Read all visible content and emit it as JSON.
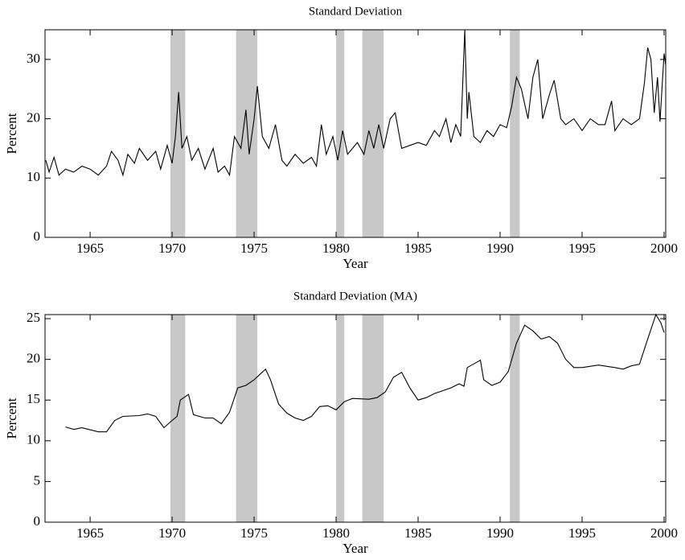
{
  "chart_data": [
    {
      "type": "line",
      "title": "Standard Deviation",
      "xlabel": "Year",
      "ylabel": "Percent",
      "xlim": [
        1962.25,
        2000.1
      ],
      "xticks": [
        1965,
        1970,
        1975,
        1980,
        1985,
        1990,
        1995,
        2000
      ],
      "ylim": [
        0,
        35
      ],
      "yticks": [
        0,
        10,
        20,
        30
      ],
      "color": "#000000",
      "shade_color": "#c8c8c8",
      "shaded_regions": [
        [
          1969.9,
          1970.8
        ],
        [
          1973.9,
          1975.2
        ],
        [
          1980.0,
          1980.5
        ],
        [
          1981.6,
          1982.9
        ],
        [
          1990.6,
          1991.2
        ]
      ],
      "x": [
        1962.3,
        1962.5,
        1962.8,
        1963.1,
        1963.5,
        1964,
        1964.5,
        1965,
        1965.5,
        1966,
        1966.3,
        1966.7,
        1967,
        1967.3,
        1967.7,
        1968,
        1968.5,
        1969,
        1969.3,
        1969.7,
        1970,
        1970.2,
        1970.4,
        1970.6,
        1970.9,
        1971.2,
        1971.6,
        1972,
        1972.5,
        1972.8,
        1973.2,
        1973.5,
        1973.8,
        1974.2,
        1974.5,
        1974.7,
        1975,
        1975.2,
        1975.5,
        1975.9,
        1976.3,
        1976.7,
        1977,
        1977.5,
        1978,
        1978.5,
        1978.8,
        1979.1,
        1979.4,
        1979.8,
        1980.1,
        1980.4,
        1980.7,
        1981,
        1981.3,
        1981.7,
        1982,
        1982.3,
        1982.6,
        1982.9,
        1983.3,
        1983.6,
        1984,
        1984.5,
        1985,
        1985.5,
        1986,
        1986.3,
        1986.7,
        1987,
        1987.3,
        1987.6,
        1987.85,
        1988,
        1988.1,
        1988.4,
        1988.8,
        1989.2,
        1989.6,
        1990,
        1990.4,
        1990.7,
        1991,
        1991.3,
        1991.7,
        1992,
        1992.3,
        1992.6,
        1993,
        1993.3,
        1993.7,
        1994,
        1994.5,
        1995,
        1995.5,
        1996,
        1996.4,
        1996.8,
        1997,
        1997.5,
        1998,
        1998.5,
        1998.8,
        1999,
        1999.2,
        1999.4,
        1999.6,
        1999.75,
        2000,
        2000.1
      ],
      "values": [
        13,
        11,
        13.5,
        10.5,
        11.5,
        11,
        12,
        11.5,
        10.5,
        12,
        14.5,
        13,
        10.5,
        14,
        12.5,
        15,
        13,
        14.5,
        11.5,
        15.5,
        12.5,
        17,
        24.5,
        15,
        17,
        13,
        15,
        11.5,
        15,
        11,
        12,
        10.5,
        17,
        15,
        21.5,
        14,
        20,
        25.5,
        17,
        15,
        19,
        13,
        12,
        14,
        12.5,
        13.5,
        12,
        19,
        14,
        17,
        13,
        18,
        14,
        15,
        16,
        14,
        18,
        15,
        19,
        15,
        20,
        21,
        15,
        15.5,
        16,
        15.5,
        18,
        17,
        20,
        16,
        19,
        17,
        35,
        20,
        24.5,
        17,
        16,
        18,
        17,
        19,
        18.5,
        22,
        27,
        25,
        20,
        27,
        30,
        20,
        24,
        26.5,
        20,
        19,
        20,
        18,
        20,
        19,
        19,
        23,
        18,
        20,
        19,
        20,
        26,
        32,
        30,
        21,
        27,
        19.5,
        31,
        29
      ]
    },
    {
      "type": "line",
      "title": "Standard Deviation (MA)",
      "xlabel": "Year",
      "ylabel": "Percent",
      "xlim": [
        1962.25,
        2000.1
      ],
      "xticks": [
        1965,
        1970,
        1975,
        1980,
        1985,
        1990,
        1995,
        2000
      ],
      "ylim": [
        0,
        25.5
      ],
      "yticks": [
        0,
        5,
        10,
        15,
        20,
        25
      ],
      "color": "#000000",
      "shade_color": "#c8c8c8",
      "shaded_regions": [
        [
          1969.9,
          1970.8
        ],
        [
          1973.9,
          1975.2
        ],
        [
          1980.0,
          1980.5
        ],
        [
          1981.6,
          1982.9
        ],
        [
          1990.6,
          1991.2
        ]
      ],
      "x": [
        1963.5,
        1964,
        1964.5,
        1965.5,
        1966,
        1966.5,
        1967,
        1968,
        1968.5,
        1969,
        1969.5,
        1970,
        1970.3,
        1970.5,
        1971,
        1971.3,
        1972,
        1972.5,
        1973,
        1973.5,
        1974,
        1974.5,
        1975,
        1975.7,
        1976,
        1976.5,
        1977,
        1977.5,
        1978,
        1978.5,
        1979,
        1979.5,
        1980,
        1980.5,
        1981,
        1982,
        1982.5,
        1983,
        1983.5,
        1984,
        1984.5,
        1985,
        1985.5,
        1986,
        1987,
        1987.5,
        1987.8,
        1988,
        1988.8,
        1989,
        1989.5,
        1990,
        1990.5,
        1991,
        1991.5,
        1992,
        1992.5,
        1993,
        1993.5,
        1994,
        1994.5,
        1995,
        1996,
        1997,
        1997.5,
        1998,
        1998.5,
        1999,
        1999.5,
        1999.8,
        2000
      ],
      "values": [
        11.7,
        11.4,
        11.6,
        11.1,
        11.1,
        12.5,
        13,
        13.1,
        13.3,
        13,
        11.6,
        12.5,
        13,
        15,
        15.7,
        13.2,
        12.8,
        12.8,
        12.1,
        13.5,
        16.5,
        16.8,
        17.5,
        18.8,
        17.5,
        14.5,
        13.4,
        12.8,
        12.5,
        13,
        14.2,
        14.3,
        13.8,
        14.8,
        15.2,
        15.1,
        15.3,
        16,
        17.8,
        18.4,
        16.5,
        15,
        15.3,
        15.8,
        16.5,
        17,
        16.7,
        19,
        19.9,
        17.5,
        16.8,
        17.2,
        18.5,
        22,
        24.2,
        23.5,
        22.5,
        22.8,
        22,
        20,
        19,
        19,
        19.3,
        19,
        18.8,
        19.2,
        19.4,
        22.5,
        25.5,
        24.5,
        23.3
      ]
    }
  ]
}
